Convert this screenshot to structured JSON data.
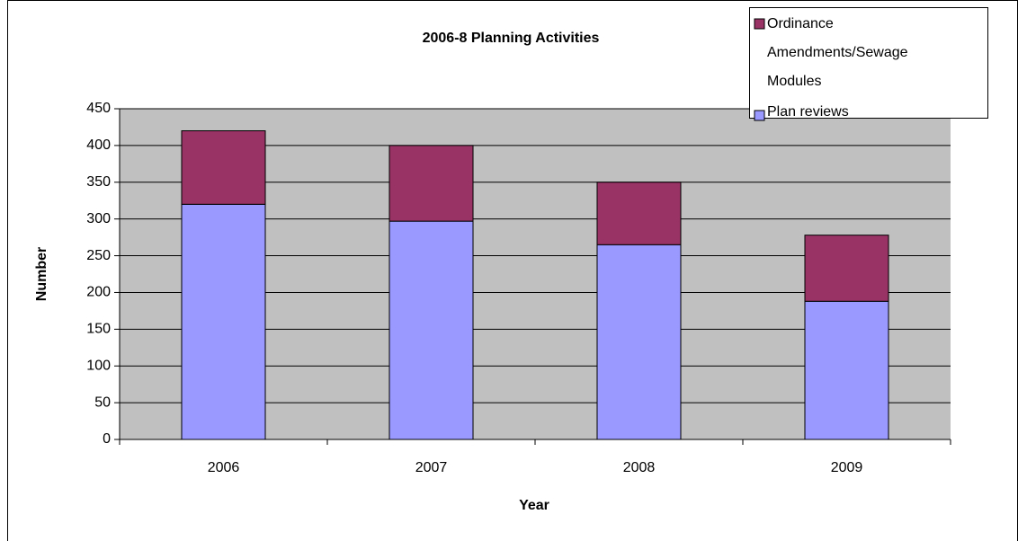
{
  "chart_data": {
    "type": "stacked_bar",
    "title": "2006-8 Planning Activities",
    "x_label": "Year",
    "y_label": "Number",
    "categories": [
      "2006",
      "2007",
      "2008",
      "2009"
    ],
    "series": [
      {
        "name": "Plan reviews",
        "color": "#9999ff",
        "values": [
          320,
          297,
          265,
          188
        ]
      },
      {
        "name": "Ordinance Amendments/Sewage Modules",
        "color": "#993366",
        "values": [
          100,
          103,
          85,
          90
        ]
      }
    ],
    "ylim": [
      0,
      450
    ],
    "yticks": [
      0,
      50,
      100,
      150,
      200,
      250,
      300,
      350,
      400,
      450
    ],
    "grid": true,
    "plot_background": "#c0c0c0",
    "legend": "top-right"
  }
}
